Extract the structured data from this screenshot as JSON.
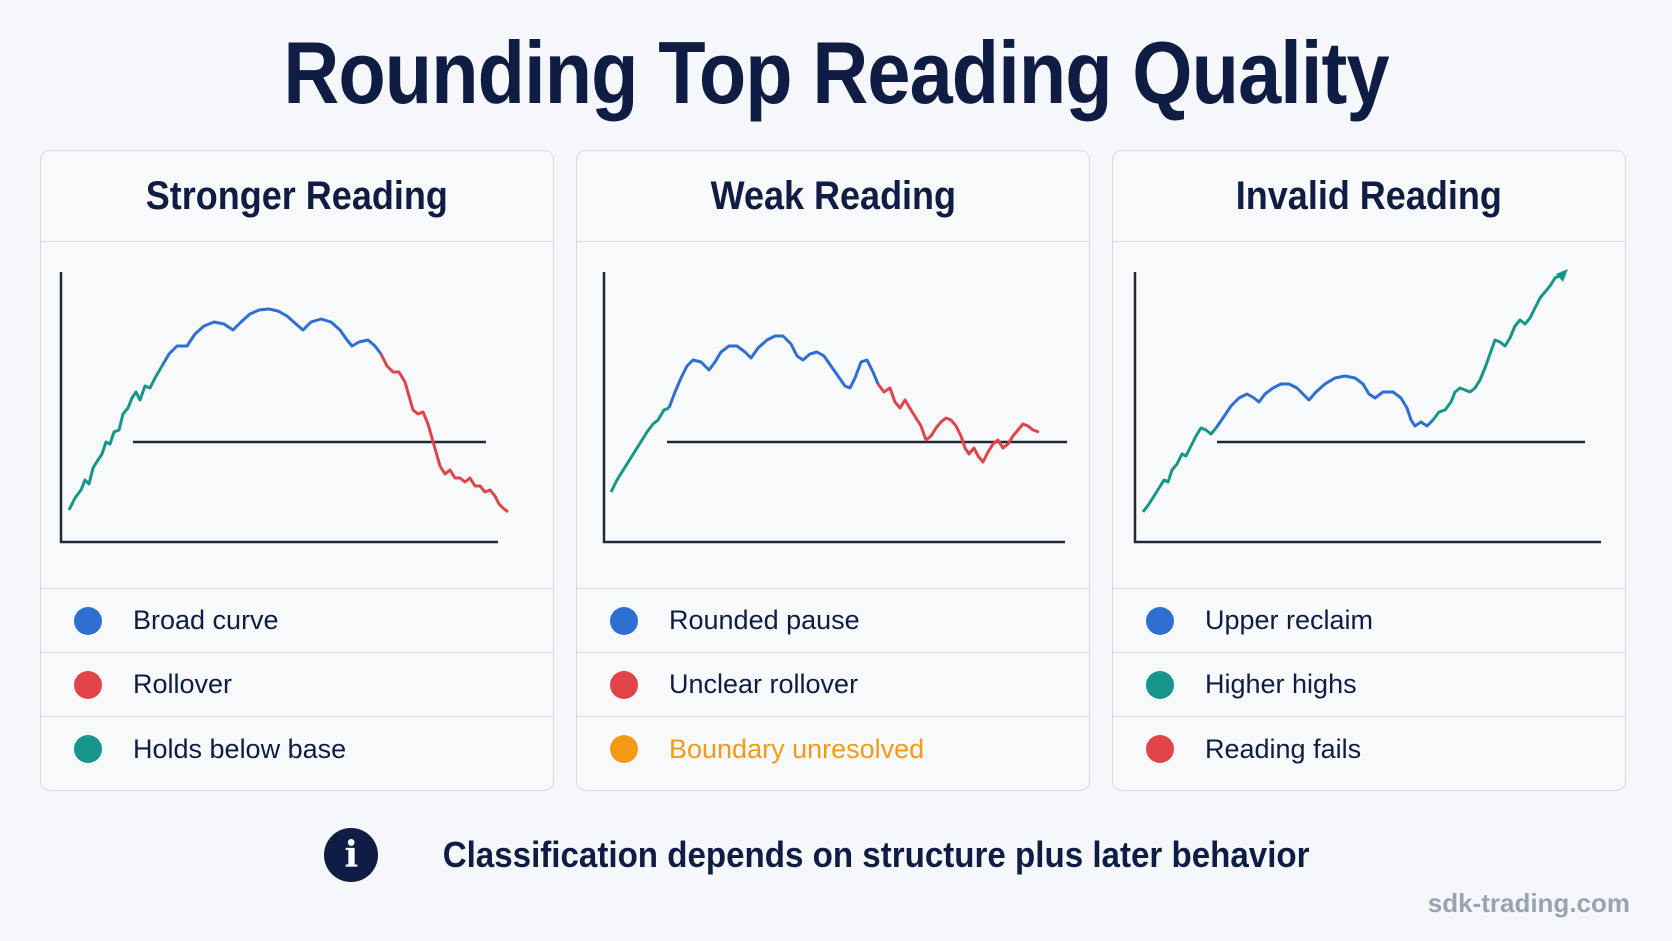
{
  "title": "Rounding Top Reading Quality",
  "colors": {
    "navy": "#0f1d45",
    "blue": "#2f6fd1",
    "red": "#e04448",
    "teal": "#16968a",
    "orange": "#f39b16"
  },
  "panels": [
    {
      "title": "Stronger Reading",
      "legend": [
        {
          "label": "Broad curve",
          "color": "#2f6fd1"
        },
        {
          "label": "Rollover",
          "color": "#e04448"
        },
        {
          "label": "Holds below base",
          "color": "#16968a"
        }
      ]
    },
    {
      "title": "Weak Reading",
      "legend": [
        {
          "label": "Rounded pause",
          "color": "#2f6fd1"
        },
        {
          "label": "Unclear rollover",
          "color": "#e04448"
        },
        {
          "label": "Boundary unresolved",
          "color": "#f39b16",
          "text_color": "#f39b16"
        }
      ]
    },
    {
      "title": "Invalid Reading",
      "legend": [
        {
          "label": "Upper reclaim",
          "color": "#2f6fd1"
        },
        {
          "label": "Higher highs",
          "color": "#16968a"
        },
        {
          "label": "Reading fails",
          "color": "#e04448"
        }
      ]
    }
  ],
  "footer": {
    "icon": "info-icon",
    "text": "Classification depends on structure plus later behavior"
  },
  "watermark": "sdk-trading.com"
}
